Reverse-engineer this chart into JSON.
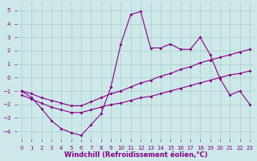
{
  "xlabel": "Windchill (Refroidissement éolien,°C)",
  "background_color": "#cde8e8",
  "grid_color": "#aacccc",
  "line_color": "#880088",
  "xlim": [
    -0.5,
    23.5
  ],
  "ylim": [
    -4.6,
    5.6
  ],
  "yticks": [
    -4,
    -3,
    -2,
    -1,
    0,
    1,
    2,
    3,
    4,
    5
  ],
  "xticks": [
    0,
    1,
    2,
    3,
    4,
    5,
    6,
    7,
    8,
    9,
    10,
    11,
    12,
    13,
    14,
    15,
    16,
    17,
    18,
    19,
    20,
    21,
    22,
    23
  ],
  "line1_x": [
    0,
    1,
    2,
    3,
    4,
    5,
    6,
    7,
    8,
    9,
    10,
    11,
    12,
    13,
    14,
    15,
    16,
    17,
    18,
    19,
    20,
    21,
    22,
    23
  ],
  "line1_y": [
    -1.0,
    -1.2,
    -1.5,
    -1.7,
    -1.9,
    -2.1,
    -2.1,
    -1.8,
    -1.5,
    -1.2,
    -1.0,
    -0.7,
    -0.4,
    -0.2,
    0.1,
    0.3,
    0.6,
    0.8,
    1.1,
    1.3,
    1.5,
    1.7,
    1.9,
    2.1
  ],
  "line2_x": [
    0,
    1,
    2,
    3,
    4,
    5,
    6,
    7,
    8,
    9,
    10,
    11,
    12,
    13,
    14,
    15,
    16,
    17,
    18,
    19,
    20,
    21,
    22,
    23
  ],
  "line2_y": [
    -1.3,
    -1.6,
    -1.9,
    -2.2,
    -2.4,
    -2.6,
    -2.6,
    -2.4,
    -2.2,
    -2.0,
    -1.9,
    -1.7,
    -1.5,
    -1.4,
    -1.2,
    -1.0,
    -0.8,
    -0.6,
    -0.4,
    -0.2,
    0.0,
    0.2,
    0.3,
    0.5
  ],
  "line3_x": [
    0,
    1,
    2,
    3,
    4,
    5,
    6,
    7,
    8,
    9,
    10,
    11,
    12,
    13,
    14,
    15,
    16,
    17,
    18,
    19,
    20,
    21,
    22,
    23
  ],
  "line3_y": [
    -1.0,
    -1.5,
    -2.3,
    -3.2,
    -3.8,
    -4.1,
    -4.3,
    -3.5,
    -2.7,
    -0.7,
    2.5,
    4.7,
    4.9,
    2.2,
    2.2,
    2.5,
    2.1,
    2.1,
    3.0,
    1.7,
    -0.1,
    -1.3,
    -1.0,
    -2.0
  ],
  "line_width": 0.8,
  "marker": "D",
  "marker_size": 2.0,
  "tick_fontsize": 5.0,
  "xlabel_fontsize": 6.0
}
